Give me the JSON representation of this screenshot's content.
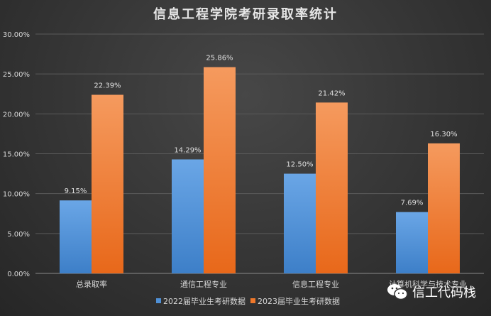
{
  "chart_data": {
    "type": "bar",
    "title": "信息工程学院考研录取率统计",
    "categories": [
      "总录取率",
      "通信工程专业",
      "信息工程专业",
      "计算机科学与技术专业"
    ],
    "series": [
      {
        "name": "2022届毕业生考研数据",
        "values": [
          9.15,
          14.29,
          12.5,
          7.69
        ],
        "labels": [
          "9.15%",
          "14.29%",
          "12.50%",
          "7.69%"
        ],
        "color": "#4f90d6"
      },
      {
        "name": "2023届毕业生考研数据",
        "values": [
          22.39,
          25.86,
          21.42,
          16.3
        ],
        "labels": [
          "22.39%",
          "25.86%",
          "21.42%",
          "16.30%"
        ],
        "color": "#f0782a"
      }
    ],
    "yticks": [
      "0.00%",
      "5.00%",
      "10.00%",
      "15.00%",
      "20.00%",
      "25.00%",
      "30.00%"
    ],
    "ylim": [
      0,
      30
    ],
    "grid": true,
    "legend": "bottom",
    "xlabel": "",
    "ylabel": ""
  },
  "watermark": {
    "text": "信工代码栈"
  }
}
